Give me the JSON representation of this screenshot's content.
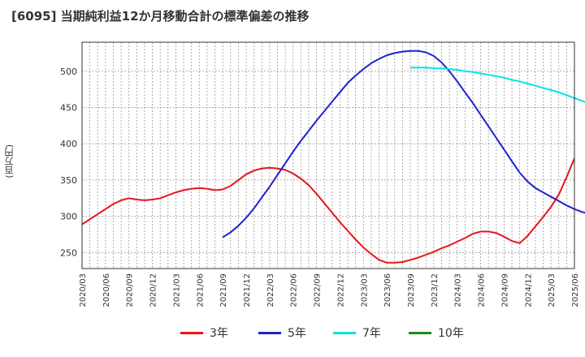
{
  "title": "[6095]  当期純利益12か月移動合計の標準偏差の推移",
  "chart_data": {
    "type": "line",
    "title": "[6095]  当期純利益12か月移動合計の標準偏差の推移",
    "ylabel": "(百万円)",
    "xlabel": "",
    "ylim": [
      228,
      540
    ],
    "yticks": [
      250,
      300,
      350,
      400,
      450,
      500
    ],
    "x_labels": [
      "2020/03",
      "2020/06",
      "2020/09",
      "2020/12",
      "2021/03",
      "2021/06",
      "2021/09",
      "2021/12",
      "2022/03",
      "2022/06",
      "2022/09",
      "2022/12",
      "2023/03",
      "2023/06",
      "2023/09",
      "2023/12",
      "2024/03",
      "2024/06",
      "2024/09",
      "2024/12",
      "2025/03",
      "2025/06"
    ],
    "grid": true,
    "legend_position": "bottom",
    "series": [
      {
        "name": "3年",
        "color": "#e8141b",
        "start_index": 0,
        "values": [
          289,
          296,
          303,
          310,
          317,
          322,
          325,
          323,
          322,
          323,
          325,
          329,
          333,
          336,
          338,
          339,
          338,
          336,
          337,
          342,
          350,
          358,
          363,
          366,
          367,
          366,
          364,
          359,
          352,
          343,
          331,
          318,
          305,
          292,
          280,
          268,
          257,
          248,
          240,
          236,
          236,
          237,
          240,
          243,
          247,
          251,
          256,
          260,
          265,
          270,
          276,
          279,
          279,
          277,
          272,
          266,
          263,
          273,
          286,
          299,
          313,
          330,
          354,
          380
        ]
      },
      {
        "name": "5年",
        "color": "#1e22cc",
        "start_index": 18,
        "values": [
          271,
          278,
          287,
          298,
          311,
          326,
          341,
          357,
          373,
          389,
          404,
          418,
          432,
          445,
          458,
          471,
          484,
          494,
          503,
          511,
          517,
          522,
          525,
          527,
          528,
          528,
          526,
          521,
          512,
          500,
          486,
          471,
          456,
          440,
          424,
          408,
          392,
          376,
          360,
          348,
          339,
          333,
          327,
          321,
          315,
          310,
          306,
          303,
          302,
          297,
          292,
          285,
          281,
          281,
          289,
          297,
          304,
          311,
          320,
          330,
          340
        ]
      },
      {
        "name": "7年",
        "color": "#00e5e5",
        "start_index": 42,
        "values": [
          505,
          505,
          505,
          504,
          504,
          503,
          502,
          500,
          499,
          497,
          495,
          493,
          491,
          488,
          486,
          483,
          480,
          477,
          474,
          471,
          467,
          463,
          459,
          455,
          450,
          446,
          445,
          442,
          440,
          437,
          435,
          434,
          434
        ]
      },
      {
        "name": "10年",
        "color": "#1a8a1a",
        "start_index": 0,
        "values": []
      }
    ]
  }
}
